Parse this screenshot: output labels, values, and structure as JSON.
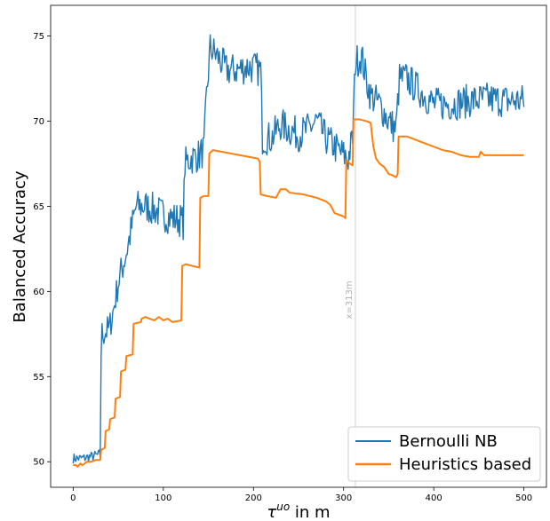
{
  "chart_data": {
    "type": "line",
    "xlabel": "τ^uo in m",
    "xlabel_main": "τ",
    "xlabel_sup": "uo",
    "xlabel_rest": " in m",
    "ylabel": "Balanced Accuracy",
    "xlim": [
      -25,
      525
    ],
    "ylim": [
      48.5,
      76.8
    ],
    "xticks": [
      0,
      100,
      200,
      300,
      400,
      500
    ],
    "yticks": [
      50,
      55,
      60,
      65,
      70,
      75
    ],
    "grid": false,
    "legend_position": "lower-right",
    "vline": {
      "x": 313,
      "label": "x=313m",
      "color": "#e0e0e0"
    },
    "series": [
      {
        "name": "Bernoulli NB",
        "color": "#1f77b4",
        "noise": 1.0,
        "points": [
          [
            0,
            50.2
          ],
          [
            10,
            50.2
          ],
          [
            20,
            50.3
          ],
          [
            28,
            50.4
          ],
          [
            30,
            50.5
          ],
          [
            31,
            56.5
          ],
          [
            32,
            57.5
          ],
          [
            40,
            57.8
          ],
          [
            45,
            59.0
          ],
          [
            50,
            60.5
          ],
          [
            55,
            61.5
          ],
          [
            60,
            62.5
          ],
          [
            65,
            63.8
          ],
          [
            70,
            65.0
          ],
          [
            80,
            65.0
          ],
          [
            90,
            64.8
          ],
          [
            100,
            64.5
          ],
          [
            110,
            64.3
          ],
          [
            120,
            64.2
          ],
          [
            122,
            64.0
          ],
          [
            124,
            67.5
          ],
          [
            130,
            67.8
          ],
          [
            140,
            68.0
          ],
          [
            145,
            68.3
          ],
          [
            148,
            71.5
          ],
          [
            152,
            74.3
          ],
          [
            160,
            73.8
          ],
          [
            170,
            73.0
          ],
          [
            180,
            73.0
          ],
          [
            195,
            73.2
          ],
          [
            208,
            73.0
          ],
          [
            210,
            69.0
          ],
          [
            220,
            69.0
          ],
          [
            230,
            69.8
          ],
          [
            240,
            69.5
          ],
          [
            250,
            69.2
          ],
          [
            260,
            69.5
          ],
          [
            270,
            70.0
          ],
          [
            280,
            69.0
          ],
          [
            290,
            68.5
          ],
          [
            300,
            68.0
          ],
          [
            305,
            67.8
          ],
          [
            310,
            69.0
          ],
          [
            313,
            73.5
          ],
          [
            320,
            73.8
          ],
          [
            325,
            72.5
          ],
          [
            330,
            71.5
          ],
          [
            340,
            71.0
          ],
          [
            350,
            70.0
          ],
          [
            358,
            69.5
          ],
          [
            362,
            72.5
          ],
          [
            370,
            72.5
          ],
          [
            380,
            72.0
          ],
          [
            390,
            71.5
          ],
          [
            400,
            71.0
          ],
          [
            420,
            71.0
          ],
          [
            440,
            71.2
          ],
          [
            460,
            71.3
          ],
          [
            480,
            71.2
          ],
          [
            500,
            71.2
          ]
        ]
      },
      {
        "name": "Heuristics based",
        "color": "#ff7f0e",
        "noise": 0,
        "points": [
          [
            0,
            49.8
          ],
          [
            3,
            49.8
          ],
          [
            5,
            49.7
          ],
          [
            8,
            49.9
          ],
          [
            10,
            49.8
          ],
          [
            13,
            49.9
          ],
          [
            15,
            50.0
          ],
          [
            20,
            50.0
          ],
          [
            25,
            50.1
          ],
          [
            30,
            50.1
          ],
          [
            31,
            50.7
          ],
          [
            35,
            50.8
          ],
          [
            36,
            51.8
          ],
          [
            40,
            51.9
          ],
          [
            41,
            52.5
          ],
          [
            46,
            52.6
          ],
          [
            47,
            53.7
          ],
          [
            52,
            53.8
          ],
          [
            53,
            55.3
          ],
          [
            58,
            55.4
          ],
          [
            59,
            56.2
          ],
          [
            66,
            56.3
          ],
          [
            67,
            58.1
          ],
          [
            75,
            58.2
          ],
          [
            76,
            58.4
          ],
          [
            80,
            58.5
          ],
          [
            85,
            58.4
          ],
          [
            90,
            58.3
          ],
          [
            95,
            58.5
          ],
          [
            100,
            58.3
          ],
          [
            105,
            58.4
          ],
          [
            110,
            58.2
          ],
          [
            120,
            58.3
          ],
          [
            121,
            61.5
          ],
          [
            125,
            61.6
          ],
          [
            132,
            61.5
          ],
          [
            140,
            61.4
          ],
          [
            141,
            65.5
          ],
          [
            145,
            65.6
          ],
          [
            150,
            65.6
          ],
          [
            151,
            68.1
          ],
          [
            155,
            68.3
          ],
          [
            165,
            68.2
          ],
          [
            175,
            68.1
          ],
          [
            185,
            68.0
          ],
          [
            195,
            67.9
          ],
          [
            205,
            67.8
          ],
          [
            207,
            67.6
          ],
          [
            208,
            65.7
          ],
          [
            215,
            65.6
          ],
          [
            225,
            65.5
          ],
          [
            230,
            66.0
          ],
          [
            236,
            66.0
          ],
          [
            240,
            65.8
          ],
          [
            255,
            65.7
          ],
          [
            270,
            65.5
          ],
          [
            280,
            65.3
          ],
          [
            285,
            65.1
          ],
          [
            290,
            64.6
          ],
          [
            300,
            64.4
          ],
          [
            302,
            64.3
          ],
          [
            303,
            67.7
          ],
          [
            307,
            67.5
          ],
          [
            310,
            67.4
          ],
          [
            311,
            70.1
          ],
          [
            318,
            70.1
          ],
          [
            325,
            70.0
          ],
          [
            330,
            69.9
          ],
          [
            333,
            68.5
          ],
          [
            336,
            67.8
          ],
          [
            340,
            67.5
          ],
          [
            345,
            67.3
          ],
          [
            350,
            66.9
          ],
          [
            355,
            66.8
          ],
          [
            358,
            66.7
          ],
          [
            360,
            66.9
          ],
          [
            361,
            69.1
          ],
          [
            370,
            69.1
          ],
          [
            380,
            68.9
          ],
          [
            390,
            68.7
          ],
          [
            400,
            68.5
          ],
          [
            410,
            68.3
          ],
          [
            420,
            68.2
          ],
          [
            430,
            68.0
          ],
          [
            440,
            67.9
          ],
          [
            450,
            67.9
          ],
          [
            452,
            68.2
          ],
          [
            456,
            68.0
          ],
          [
            470,
            68.0
          ],
          [
            480,
            68.0
          ],
          [
            490,
            68.0
          ],
          [
            500,
            68.0
          ]
        ]
      }
    ]
  }
}
